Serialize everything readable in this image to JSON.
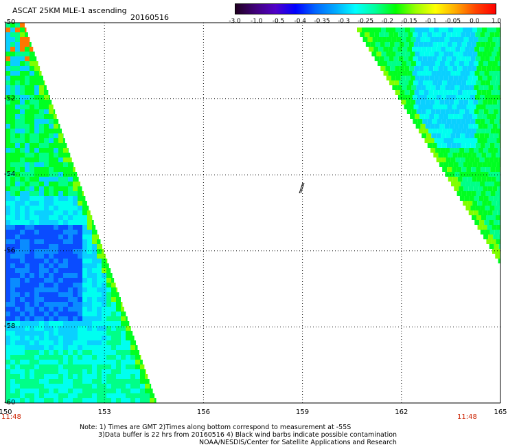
{
  "header": {
    "title": "ASCAT 25KM MLE-1 ascending",
    "date": "20160516"
  },
  "colorbar": {
    "ticks": [
      "-3.0",
      "-1.0",
      "-0.5",
      "-0.4",
      "-0.35",
      "-0.3",
      "-0.25",
      "-0.2",
      "-0.15",
      "-0.1",
      "-0.05",
      "0.0",
      "1.0"
    ],
    "colors": [
      "#200020",
      "#40007a",
      "#5000c8",
      "#0000ff",
      "#0066ff",
      "#00aaff",
      "#00ffff",
      "#00ff99",
      "#00ff00",
      "#99ff00",
      "#ffff00",
      "#ffaa00",
      "#ff4400",
      "#ff0000"
    ]
  },
  "map": {
    "lat_labels": [
      "-50",
      "-52",
      "-54",
      "-56",
      "-58",
      "-60"
    ],
    "lon_labels": [
      "150",
      "153",
      "156",
      "159",
      "162",
      "165"
    ],
    "time_left": "11:48",
    "time_right": "11:48"
  },
  "notes": {
    "line1": "Note: 1) Times are GMT 2)Times along bottom correspond to measurement at -55S",
    "line2": "3)Data buffer is 22 hrs from 20160516 4) Black wind barbs indicate possible contamination",
    "line3": "NOAA/NESDIS/Center for Satellite Applications and Research"
  }
}
